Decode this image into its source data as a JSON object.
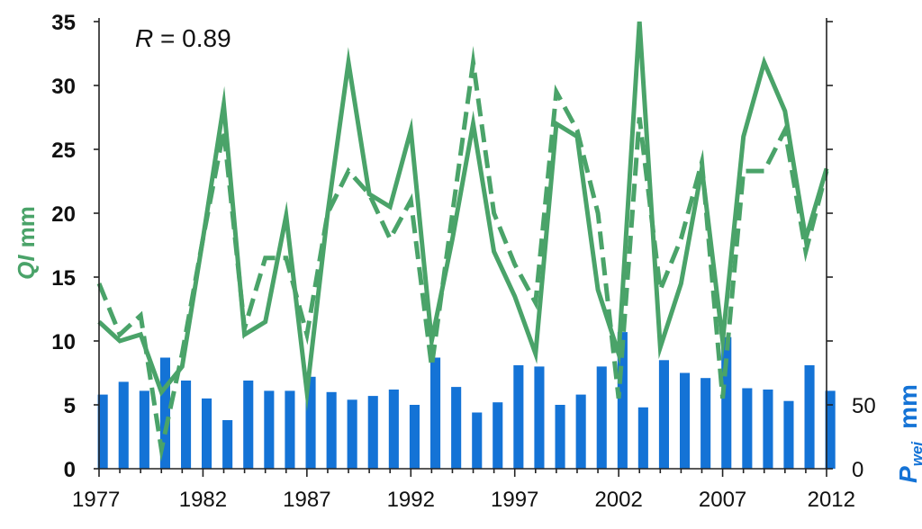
{
  "chart_data": {
    "type": "bar+line",
    "annotation": "R = 0.89",
    "annotation_var": "R",
    "annotation_rest": " = 0.89",
    "x": [
      1977,
      1978,
      1979,
      1980,
      1981,
      1982,
      1983,
      1984,
      1985,
      1986,
      1987,
      1988,
      1989,
      1990,
      1991,
      1992,
      1993,
      1994,
      1995,
      1996,
      1997,
      1998,
      1999,
      2000,
      2001,
      2002,
      2003,
      2004,
      2005,
      2006,
      2007,
      2008,
      2009,
      2010,
      2011,
      2012
    ],
    "xticks": [
      "1977",
      "1982",
      "1987",
      "1992",
      "1997",
      "2002",
      "2007",
      "2012"
    ],
    "xlim": [
      1977,
      2012
    ],
    "left_axis": {
      "label_var": "QI",
      "label_unit": "mm",
      "ylim": [
        0,
        35
      ],
      "ticks": [
        "0",
        "5",
        "10",
        "15",
        "20",
        "25",
        "30",
        "35"
      ]
    },
    "right_axis": {
      "label_var": "P",
      "label_sub": "wei",
      "label_unit": "mm",
      "ticks": [
        "0",
        "50"
      ],
      "max": 350
    },
    "colors": {
      "line": "#4aa369",
      "bar": "#1473d6"
    },
    "series": [
      {
        "style": "solid",
        "values": [
          11.5,
          10,
          10.5,
          6,
          8,
          18,
          28.5,
          10.5,
          11.5,
          19.8,
          6,
          20,
          31.8,
          21.5,
          20.5,
          26.5,
          10,
          18,
          27,
          17,
          13.5,
          9,
          27,
          26,
          14,
          9,
          35,
          9.5,
          14.5,
          23.5,
          10,
          26,
          31.8,
          28,
          18,
          23.5
        ]
      },
      {
        "style": "dashed",
        "values": [
          14.5,
          10.5,
          12,
          1.5,
          9,
          18,
          26.5,
          11,
          16.5,
          16.5,
          10.5,
          20,
          23.3,
          21.5,
          18,
          21,
          8,
          20,
          31.8,
          20,
          16,
          13,
          29.5,
          26.5,
          20,
          5.5,
          27.5,
          14,
          18,
          24,
          5.5,
          23.3,
          23.3,
          26.5,
          17,
          23.3
        ]
      },
      {
        "style": "bar",
        "values": [
          58,
          68,
          61,
          87,
          69,
          55,
          38,
          69,
          61,
          61,
          72,
          60,
          54,
          57,
          62,
          50,
          87,
          64,
          44,
          52,
          81,
          80,
          50,
          58,
          80,
          107,
          48,
          85,
          75,
          71,
          103,
          63,
          62,
          53,
          81,
          61
        ]
      }
    ]
  }
}
